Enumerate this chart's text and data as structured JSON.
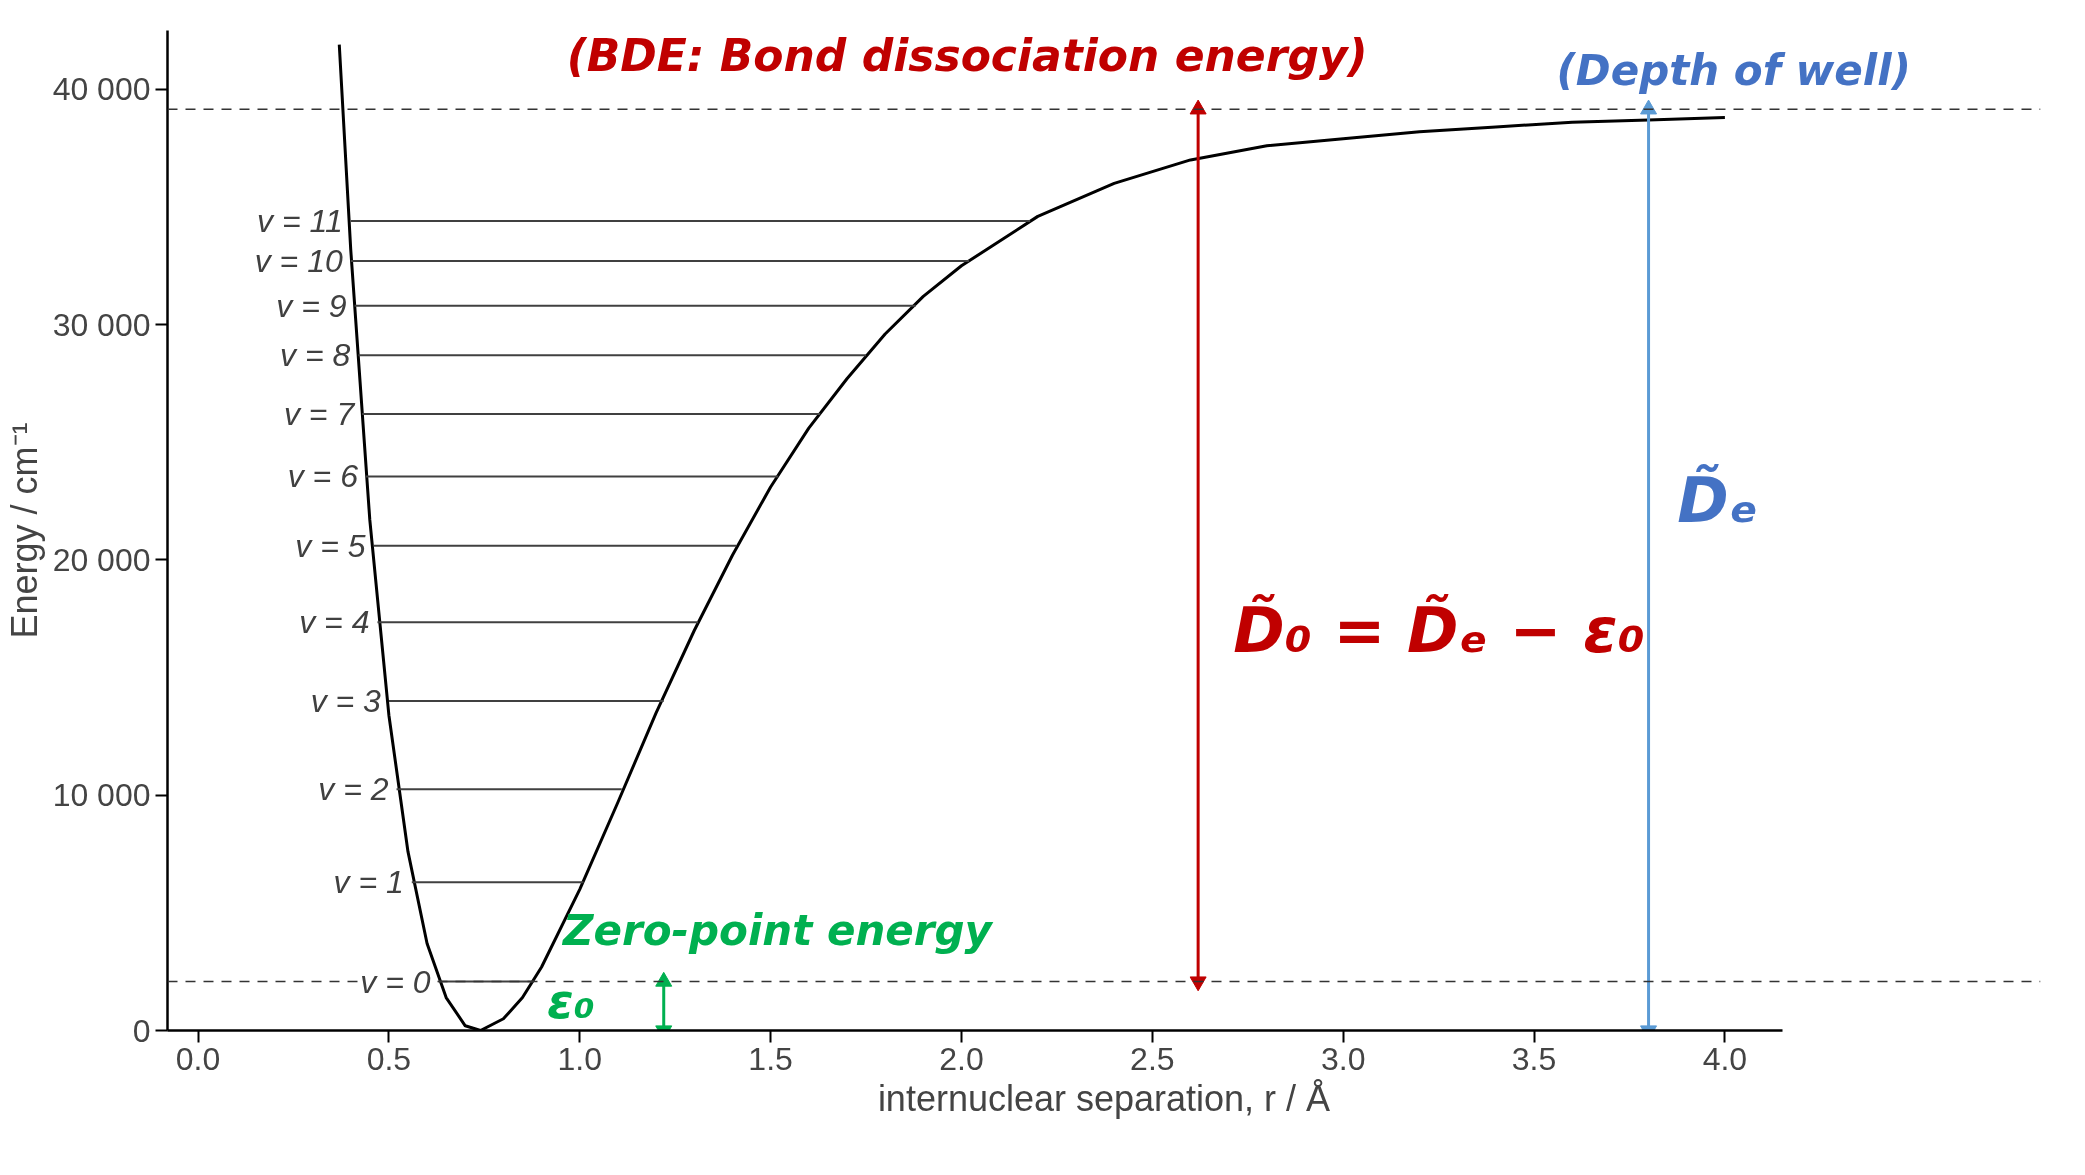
{
  "chart_data": {
    "type": "line",
    "xlabel": "internuclear separation, r / Å",
    "ylabel": "Energy / cm⁻¹",
    "xlim": [
      -0.08,
      4.15
    ],
    "ylim": [
      0,
      42500
    ],
    "xticks": [
      {
        "value": 0,
        "label": "0.0"
      },
      {
        "value": 0.5,
        "label": "0.5"
      },
      {
        "value": 1,
        "label": "1.0"
      },
      {
        "value": 1.5,
        "label": "1.5"
      },
      {
        "value": 2,
        "label": "2.0"
      },
      {
        "value": 2.5,
        "label": "2.5"
      },
      {
        "value": 3,
        "label": "3.0"
      },
      {
        "value": 3.5,
        "label": "3.5"
      },
      {
        "value": 4,
        "label": "4.0"
      }
    ],
    "yticks": [
      0,
      {
        "value": 10000,
        "label": "10 000"
      },
      {
        "value": 20000,
        "label": "20 000"
      },
      {
        "value": 30000,
        "label": "30 000"
      },
      {
        "value": 40000,
        "label": "40 000"
      }
    ],
    "grid": false,
    "marker": "none",
    "line_style": "solid",
    "series": [
      {
        "color": "#000000",
        "x": [
          0.37,
          0.4,
          0.45,
          0.5,
          0.55,
          0.6,
          0.65,
          0.7,
          0.74,
          0.8,
          0.85,
          0.9,
          1.0,
          1.1,
          1.2,
          1.3,
          1.4,
          1.5,
          1.6,
          1.7,
          1.8,
          1.9,
          2.0,
          2.2,
          2.4,
          2.6,
          2.8,
          3.0,
          3.2,
          3.4,
          3.6,
          3.8,
          4.0
        ],
        "values": [
          41900,
          33200,
          21700,
          13400,
          7600,
          3700,
          1400,
          200,
          0,
          500,
          1400,
          2700,
          6000,
          9700,
          13500,
          17000,
          20200,
          23100,
          25600,
          27700,
          29600,
          31200,
          32500,
          34600,
          36000,
          37000,
          37600,
          37900,
          38200,
          38400,
          38600,
          38700,
          38800
        ]
      },
      {
        "name": "v = 0",
        "color": "#404040",
        "x": [
          0.63,
          0.88
        ],
        "values": [
          2080,
          2080
        ]
      },
      {
        "name": "v = 1",
        "color": "#404040",
        "x": [
          0.56,
          1.01
        ],
        "values": [
          6300,
          6300
        ]
      },
      {
        "name": "v = 2",
        "color": "#404040",
        "x": [
          0.52,
          1.11
        ],
        "values": [
          10250,
          10250
        ]
      },
      {
        "name": "v = 3",
        "color": "#404040",
        "x": [
          0.5,
          1.22
        ],
        "values": [
          14000,
          14000
        ]
      },
      {
        "name": "v = 4",
        "color": "#404040",
        "x": [
          0.47,
          1.31
        ],
        "values": [
          17350,
          17350
        ]
      },
      {
        "name": "v = 5",
        "color": "#404040",
        "x": [
          0.46,
          1.41
        ],
        "values": [
          20600,
          20600
        ]
      },
      {
        "name": "v = 6",
        "color": "#404040",
        "x": [
          0.44,
          1.52
        ],
        "values": [
          23550,
          23550
        ]
      },
      {
        "name": "v = 7",
        "color": "#404040",
        "x": [
          0.43,
          1.63
        ],
        "values": [
          26200,
          26200
        ]
      },
      {
        "name": "v = 8",
        "color": "#404040",
        "x": [
          0.42,
          1.75
        ],
        "values": [
          28700,
          28700
        ]
      },
      {
        "name": "v = 9",
        "color": "#404040",
        "x": [
          0.41,
          1.88
        ],
        "values": [
          30800,
          30800
        ]
      },
      {
        "name": "v = 10",
        "color": "#404040",
        "x": [
          0.4,
          2.02
        ],
        "values": [
          32700,
          32700
        ]
      },
      {
        "name": "v = 11",
        "color": "#404040",
        "x": [
          0.4,
          2.18
        ],
        "values": [
          34400,
          34400
        ]
      },
      {
        "color": "#c00000",
        "marker": "triangle",
        "x": [
          2.62,
          2.62
        ],
        "values": [
          2080,
          39150
        ]
      },
      {
        "color": "#5b9bd5",
        "marker": "triangle",
        "x": [
          3.8,
          3.8
        ],
        "values": [
          0,
          39150
        ]
      },
      {
        "color": "#00b050",
        "marker": "triangle",
        "x": [
          1.22,
          1.22
        ],
        "values": [
          0,
          2080
        ]
      }
    ],
    "ref_lines": [
      {
        "axis": "y",
        "value": 39150,
        "color": "#333333",
        "line_style": "dashed"
      },
      {
        "axis": "y",
        "value": 2080,
        "color": "#333333",
        "line_style": "dashed"
      }
    ],
    "annotations": [
      "(BDE:  Bond dissociation energy)",
      "(Depth of well)",
      "D̃₀ = D̃ₑ − ε₀",
      "D̃ₑ",
      "Zero-point energy",
      "ε₀"
    ]
  }
}
